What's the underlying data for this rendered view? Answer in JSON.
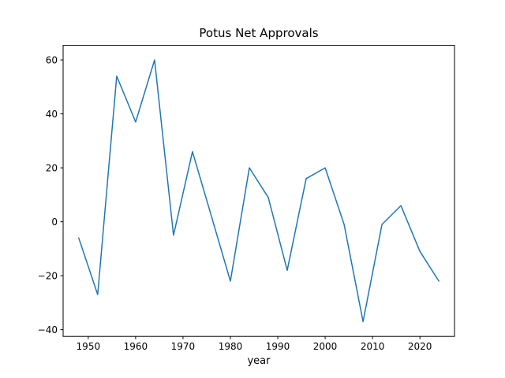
{
  "figure": {
    "background": "#ffffff",
    "axis_color": "#000000",
    "line_color": "#1f77b4"
  },
  "chart_data": {
    "type": "line",
    "title": "Potus Net Approvals",
    "xlabel": "year",
    "ylabel": "",
    "x": [
      1948,
      1952,
      1956,
      1960,
      1964,
      1968,
      1972,
      1976,
      1980,
      1984,
      1988,
      1992,
      1996,
      2000,
      2004,
      2008,
      2012,
      2016,
      2020,
      2024
    ],
    "values": [
      -6,
      -27,
      54,
      37,
      60,
      -5,
      26,
      2,
      -22,
      20,
      9,
      -18,
      16,
      20,
      -1,
      -37,
      -1,
      6,
      -11,
      -22
    ],
    "xticks": [
      1950,
      1960,
      1970,
      1980,
      1990,
      2000,
      2010,
      2020
    ],
    "yticks": [
      -40,
      -20,
      0,
      20,
      40,
      60
    ],
    "xlim": [
      1944.7,
      2027.3
    ],
    "ylim": [
      -42.5,
      65.4
    ],
    "grid": false,
    "legend": null,
    "line_color": "#1f77b4",
    "line_width": 1.5
  }
}
